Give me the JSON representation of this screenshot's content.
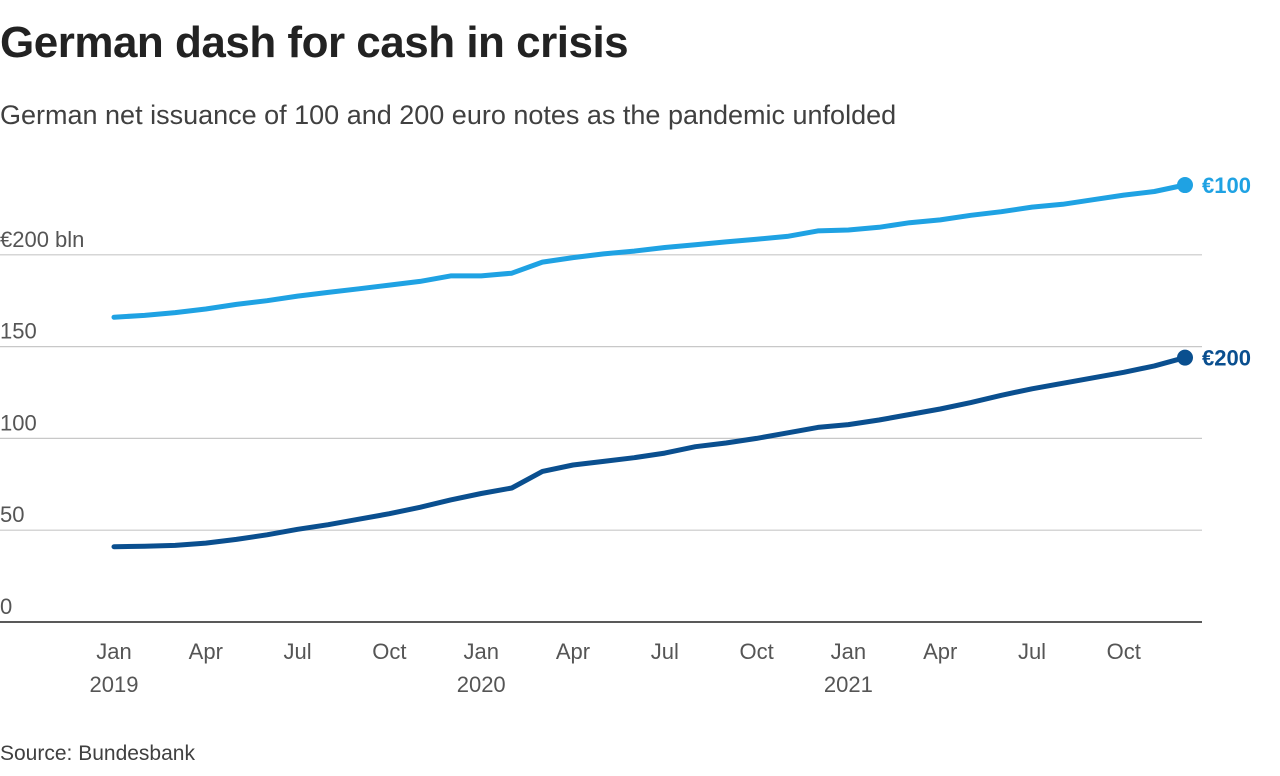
{
  "title": "German dash for cash in crisis",
  "subtitle": "German net issuance of 100 and 200 euro notes as the pandemic unfolded",
  "source": "Source: Bundesbank",
  "colors": {
    "eur100": "#1fa2e3",
    "eur200": "#0a4f8f",
    "grid": "#c8c8c8",
    "axis": "#222222"
  },
  "chart_data": {
    "type": "line",
    "y_unit_label": "€200 bln",
    "ylim": [
      0,
      210
    ],
    "y_ticks": [
      {
        "value": 0,
        "label": "0"
      },
      {
        "value": 50,
        "label": "50"
      },
      {
        "value": 100,
        "label": "100"
      },
      {
        "value": 150,
        "label": "150"
      },
      {
        "value": 200,
        "label": "200"
      }
    ],
    "x_ticks": [
      {
        "month": "Jan",
        "year": "2019",
        "index": 0
      },
      {
        "month": "Apr",
        "year": "",
        "index": 3
      },
      {
        "month": "Jul",
        "year": "",
        "index": 6
      },
      {
        "month": "Oct",
        "year": "",
        "index": 9
      },
      {
        "month": "Jan",
        "year": "2020",
        "index": 12
      },
      {
        "month": "Apr",
        "year": "",
        "index": 15
      },
      {
        "month": "Jul",
        "year": "",
        "index": 18
      },
      {
        "month": "Oct",
        "year": "",
        "index": 21
      },
      {
        "month": "Jan",
        "year": "2021",
        "index": 24
      },
      {
        "month": "Apr",
        "year": "",
        "index": 27
      },
      {
        "month": "Jul",
        "year": "",
        "index": 30
      },
      {
        "month": "Oct",
        "year": "",
        "index": 33
      }
    ],
    "x": [
      "2019-01",
      "2019-02",
      "2019-03",
      "2019-04",
      "2019-05",
      "2019-06",
      "2019-07",
      "2019-08",
      "2019-09",
      "2019-10",
      "2019-11",
      "2019-12",
      "2020-01",
      "2020-02",
      "2020-03",
      "2020-04",
      "2020-05",
      "2020-06",
      "2020-07",
      "2020-08",
      "2020-09",
      "2020-10",
      "2020-11",
      "2020-12",
      "2021-01",
      "2021-02",
      "2021-03",
      "2021-04",
      "2021-05",
      "2021-06",
      "2021-07",
      "2021-08",
      "2021-09",
      "2021-10",
      "2021-11",
      "2021-12"
    ],
    "series": [
      {
        "name": "€100",
        "color_key": "eur100",
        "values": [
          166,
          167,
          168.5,
          170.5,
          173,
          175,
          177.5,
          179.5,
          181.5,
          183.5,
          185.5,
          188.5,
          188.5,
          190,
          196,
          198.5,
          200.5,
          202,
          204,
          205.5,
          207,
          208.5,
          210,
          213,
          213.5,
          215,
          217.5,
          219,
          221.5,
          223.5,
          226,
          227.5,
          230,
          232.5,
          234.5,
          238
        ]
      },
      {
        "name": "€200",
        "color_key": "eur200",
        "values": [
          41,
          41.3,
          41.7,
          43,
          45,
          47.5,
          50.5,
          53,
          56,
          59,
          62.5,
          66.5,
          70,
          73,
          82,
          85.5,
          87.5,
          89.5,
          92,
          95.5,
          97.5,
          100,
          103,
          106,
          107.5,
          110,
          113,
          116,
          119.5,
          123.5,
          127,
          130,
          133,
          136,
          139.5,
          144
        ]
      }
    ],
    "grid": true,
    "legend": "direct labels at line ends (right)"
  }
}
